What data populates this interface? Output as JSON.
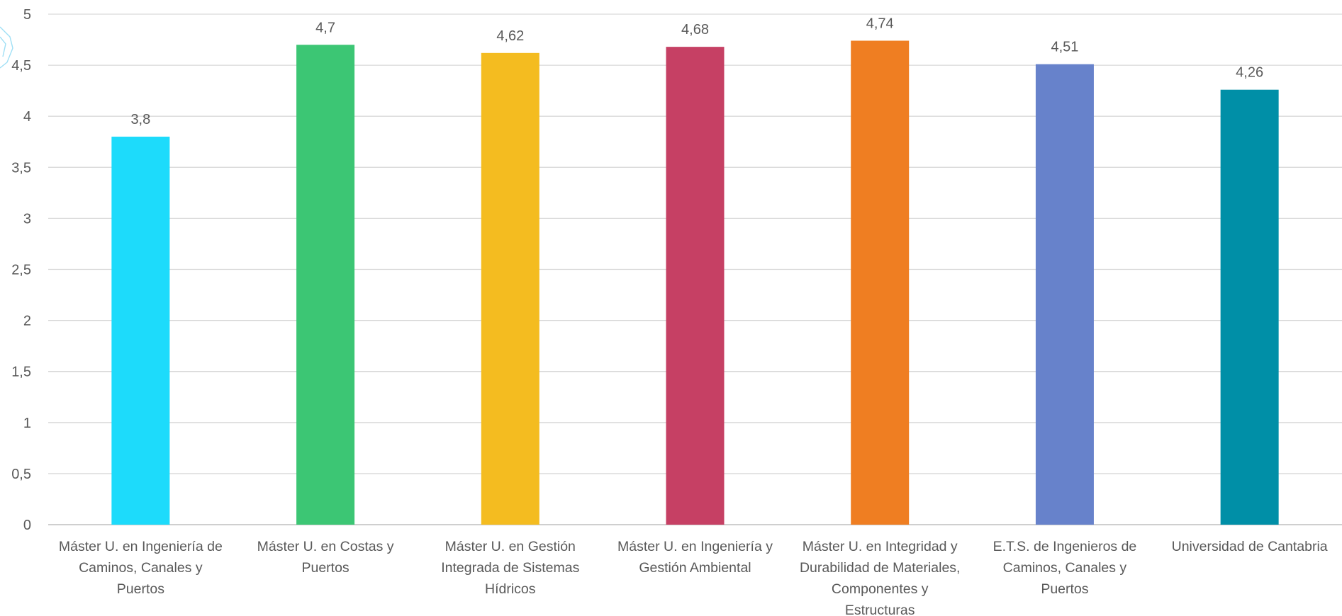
{
  "chart_data": {
    "type": "bar",
    "categories": [
      [
        "Máster U. en Ingeniería de",
        "Caminos, Canales y",
        "Puertos"
      ],
      [
        "Máster U. en Costas y",
        "Puertos"
      ],
      [
        "Máster U. en Gestión",
        "Integrada de Sistemas",
        "Hídricos"
      ],
      [
        "Máster U. en Ingeniería y",
        "Gestión Ambiental"
      ],
      [
        "Máster U. en Integridad y",
        "Durabilidad de Materiales,",
        "Componentes y",
        "Estructuras"
      ],
      [
        "E.T.S. de Ingenieros de",
        "Caminos, Canales y",
        "Puertos"
      ],
      [
        "Universidad de Cantabria"
      ]
    ],
    "values": [
      3.8,
      4.7,
      4.62,
      4.68,
      4.74,
      4.51,
      4.26
    ],
    "value_labels": [
      "3,8",
      "4,7",
      "4,62",
      "4,68",
      "4,74",
      "4,51",
      "4,26"
    ],
    "colors": [
      "#1ddbfb",
      "#3cc674",
      "#f4bc20",
      "#c64064",
      "#ef7e22",
      "#6782cb",
      "#008fa7"
    ],
    "ylim": [
      0,
      5
    ],
    "yticks": [
      0,
      0.5,
      1,
      1.5,
      2,
      2.5,
      3,
      3.5,
      4,
      4.5,
      5
    ],
    "ytick_labels": [
      "0",
      "0,5",
      "1",
      "1,5",
      "2",
      "2,5",
      "3",
      "3,5",
      "4",
      "4,5",
      "5"
    ],
    "grid": true,
    "title": "",
    "xlabel": "",
    "ylabel": ""
  }
}
